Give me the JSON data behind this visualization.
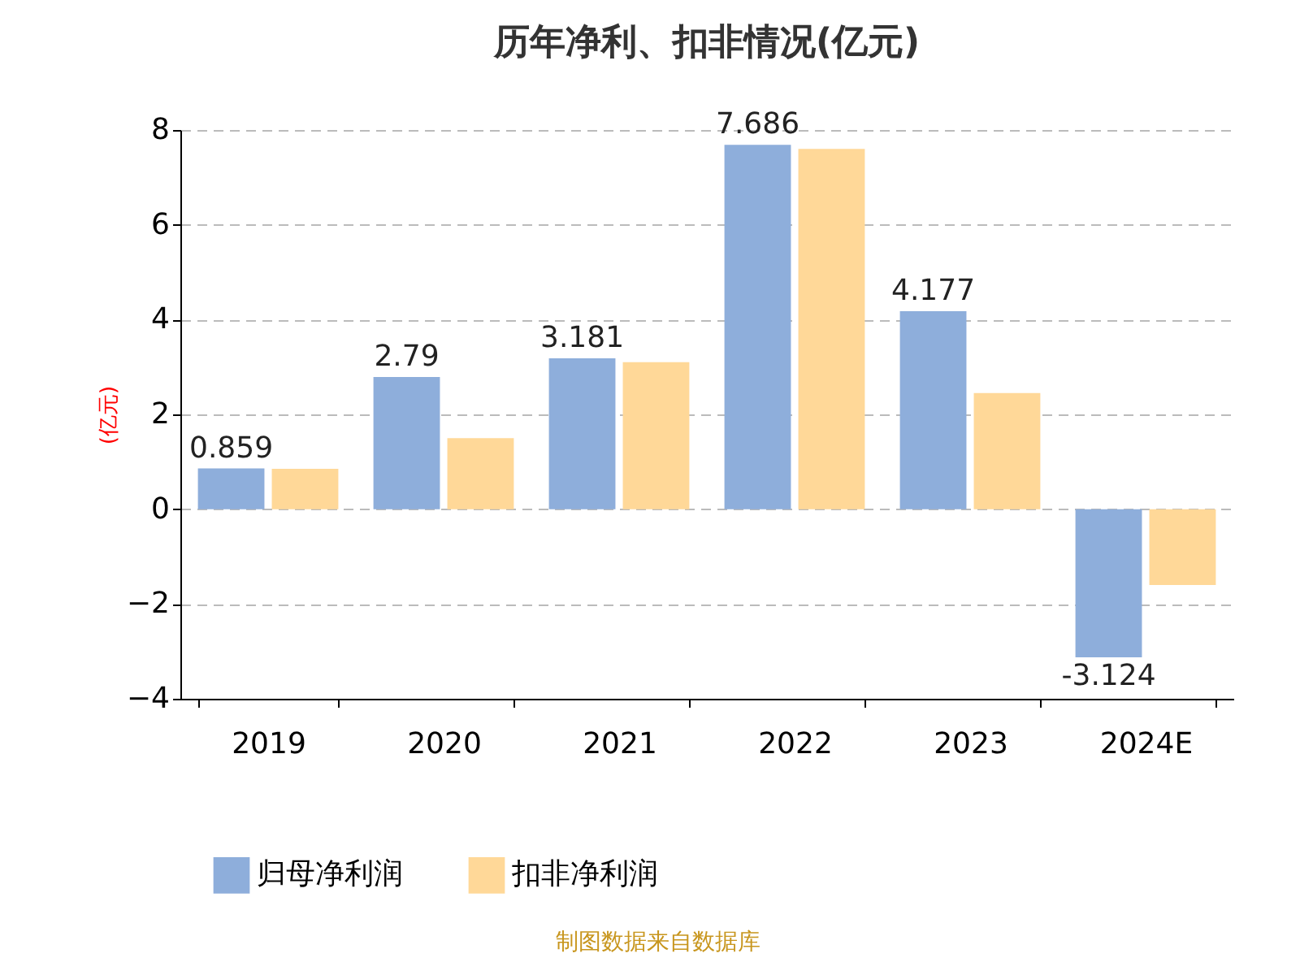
{
  "chart_data": {
    "type": "bar",
    "title": "历年净利、扣非情况(亿元)",
    "ylabel": "(亿元)",
    "categories": [
      "2019",
      "2020",
      "2021",
      "2022",
      "2023",
      "2024E"
    ],
    "series": [
      {
        "name": "归母净利润",
        "color": "#8eaedb",
        "values": [
          0.859,
          2.79,
          3.181,
          7.686,
          4.177,
          -3.124
        ],
        "value_labels": [
          "0.859",
          "2.79",
          "3.181",
          "7.686",
          "4.177",
          "-3.124"
        ]
      },
      {
        "name": "扣非净利润",
        "color": "#ffd898",
        "values": [
          0.85,
          1.5,
          3.1,
          7.6,
          2.45,
          -1.6
        ]
      }
    ],
    "ylim": [
      -4,
      8
    ],
    "yticks": [
      -4,
      -2,
      0,
      2,
      4,
      6,
      8
    ],
    "grid": "y",
    "legend": "bottom",
    "annotations": [
      "制图数据来自数据库"
    ]
  }
}
